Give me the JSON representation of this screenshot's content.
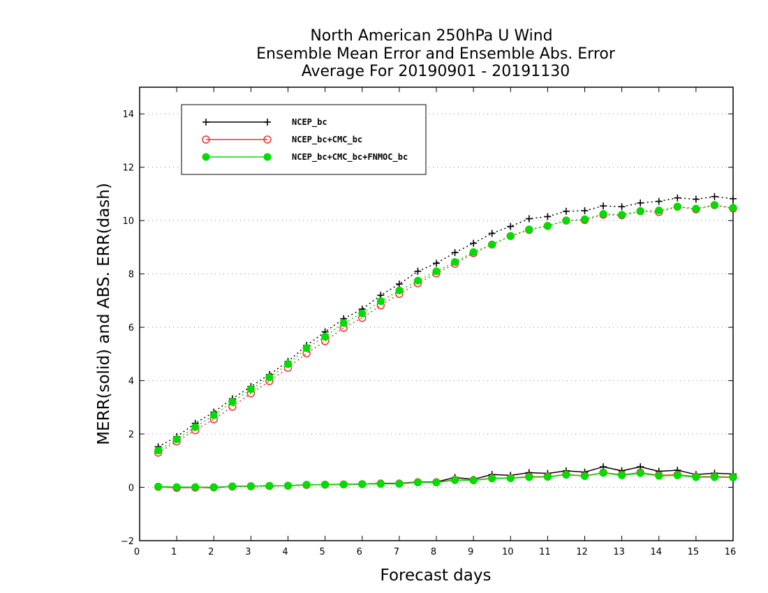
{
  "chart_data": {
    "type": "line",
    "title_lines": [
      "North American 250hPa U Wind",
      "Ensemble Mean Error and Ensemble Abs. Error",
      "Average For 20190901 - 20191130"
    ],
    "xlabel": "Forecast days",
    "ylabel": "MERR(solid) and ABS. ERR(dash)",
    "xlim": [
      0,
      16
    ],
    "ylim": [
      -2,
      15
    ],
    "x_ticks": [
      0,
      1,
      2,
      3,
      4,
      5,
      6,
      7,
      8,
      9,
      10,
      11,
      12,
      13,
      14,
      15,
      16
    ],
    "y_ticks": [
      -2,
      0,
      2,
      4,
      6,
      8,
      10,
      12,
      14
    ],
    "grid": "horizontal dotted",
    "legend_position": "top-left",
    "x": [
      0.5,
      1,
      1.5,
      2,
      2.5,
      3,
      3.5,
      4,
      4.5,
      5,
      5.5,
      6,
      6.5,
      7,
      7.5,
      8,
      8.5,
      9,
      9.5,
      10,
      10.5,
      11,
      11.5,
      12,
      12.5,
      13,
      13.5,
      14,
      14.5,
      15,
      15.5,
      16
    ],
    "series": [
      {
        "name": "NCEP_bc",
        "marker": "plus",
        "color": "#000000",
        "merr": [
          0.02,
          0.0,
          0.0,
          -0.02,
          0.04,
          0.04,
          0.06,
          0.06,
          0.1,
          0.1,
          0.12,
          0.12,
          0.15,
          0.15,
          0.2,
          0.2,
          0.37,
          0.3,
          0.48,
          0.45,
          0.55,
          0.52,
          0.62,
          0.57,
          0.77,
          0.62,
          0.77,
          0.6,
          0.64,
          0.48,
          0.53,
          0.5
        ],
        "abs_err": [
          1.52,
          1.9,
          2.4,
          2.82,
          3.32,
          3.78,
          4.23,
          4.72,
          5.32,
          5.83,
          6.32,
          6.68,
          7.2,
          7.62,
          8.1,
          8.4,
          8.8,
          9.15,
          9.52,
          9.78,
          10.07,
          10.15,
          10.35,
          10.37,
          10.55,
          10.52,
          10.66,
          10.72,
          10.85,
          10.8,
          10.9,
          10.82
        ]
      },
      {
        "name": "NCEP_bc+CMC_bc",
        "marker": "open-circle",
        "color": "#ee3333",
        "merr": [
          0.02,
          -0.02,
          -0.01,
          0.0,
          0.03,
          0.04,
          0.05,
          0.06,
          0.09,
          0.1,
          0.11,
          0.12,
          0.14,
          0.14,
          0.19,
          0.19,
          0.28,
          0.27,
          0.34,
          0.35,
          0.4,
          0.4,
          0.48,
          0.43,
          0.55,
          0.47,
          0.55,
          0.45,
          0.47,
          0.4,
          0.4,
          0.38
        ],
        "abs_err": [
          1.3,
          1.72,
          2.14,
          2.55,
          3.02,
          3.52,
          3.98,
          4.48,
          5.02,
          5.48,
          5.98,
          6.35,
          6.82,
          7.25,
          7.65,
          8.02,
          8.38,
          8.78,
          9.1,
          9.42,
          9.65,
          9.8,
          10.0,
          10.02,
          10.22,
          10.2,
          10.35,
          10.32,
          10.52,
          10.42,
          10.58,
          10.45
        ]
      },
      {
        "name": "NCEP_bc+CMC_bc+FNMOC_bc",
        "marker": "filled-circle",
        "color": "#00dd00",
        "merr": [
          0.03,
          0.01,
          0.01,
          0.0,
          0.04,
          0.04,
          0.06,
          0.06,
          0.1,
          0.1,
          0.11,
          0.12,
          0.13,
          0.13,
          0.18,
          0.18,
          0.27,
          0.26,
          0.33,
          0.34,
          0.38,
          0.39,
          0.47,
          0.42,
          0.54,
          0.45,
          0.53,
          0.43,
          0.45,
          0.38,
          0.38,
          0.37
        ],
        "abs_err": [
          1.38,
          1.8,
          2.26,
          2.7,
          3.2,
          3.68,
          4.12,
          4.62,
          5.22,
          5.65,
          6.16,
          6.52,
          6.98,
          7.38,
          7.75,
          8.1,
          8.45,
          8.82,
          9.1,
          9.42,
          9.67,
          9.8,
          10.0,
          10.05,
          10.25,
          10.22,
          10.35,
          10.38,
          10.52,
          10.45,
          10.58,
          10.48
        ]
      }
    ]
  }
}
